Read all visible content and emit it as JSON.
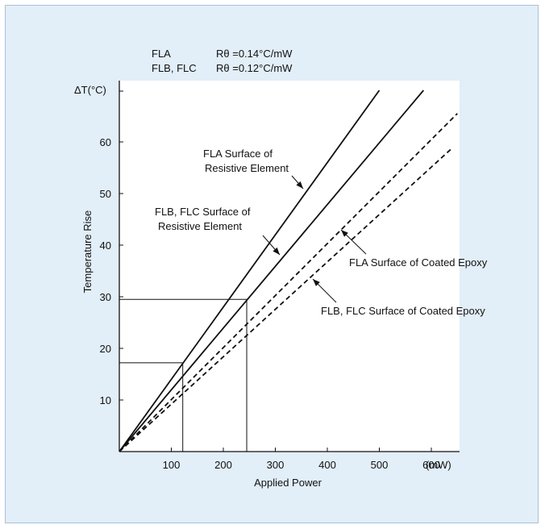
{
  "chart_data": {
    "type": "line",
    "title": "",
    "xlabel": "Applied Power",
    "xunit": "(mW)",
    "ylabel": "Temperature Rise",
    "yunit": "ΔT(°C)",
    "xlim": [
      0,
      650
    ],
    "ylim": [
      0,
      70
    ],
    "x_ticks": [
      100,
      200,
      300,
      400,
      500,
      600
    ],
    "y_ticks": [
      10,
      20,
      30,
      40,
      50,
      60
    ],
    "grid": false,
    "legend_text": [
      {
        "name": "FLA",
        "value": "Rθ =0.14°C/mW"
      },
      {
        "name": "FLB, FLC",
        "value": "Rθ =0.12°C/mW"
      }
    ],
    "series": [
      {
        "name": "FLA Surface of Resistive Element",
        "label_lines": [
          "FLA Surface of",
          "Resistive Element"
        ],
        "style": "solid",
        "x": [
          0,
          500
        ],
        "y": [
          0,
          70
        ]
      },
      {
        "name": "FLB, FLC Surface of Resistive Element",
        "label_lines": [
          "FLB, FLC Surface of",
          "Resistive Element"
        ],
        "style": "solid",
        "x": [
          0,
          585
        ],
        "y": [
          0,
          70
        ]
      },
      {
        "name": "FLA Surface of Coated Epoxy",
        "label_lines": [
          "FLA Surface of Coated Epoxy"
        ],
        "style": "dashed",
        "x": [
          0,
          650
        ],
        "y": [
          0,
          65.5
        ]
      },
      {
        "name": "FLB, FLC Surface of Coated Epoxy",
        "label_lines": [
          "FLB, FLC Surface of Coated Epoxy"
        ],
        "style": "dashed",
        "x": [
          0,
          640
        ],
        "y": [
          0,
          58.8
        ]
      }
    ],
    "reference_lines": [
      {
        "x": 122,
        "y": 17.2
      },
      {
        "x": 245,
        "y": 29.5
      }
    ],
    "colors": {
      "background": "#e2eef8",
      "border": "#a9c2d8",
      "plot_area": "#ffffff",
      "ink": "#111111"
    }
  }
}
